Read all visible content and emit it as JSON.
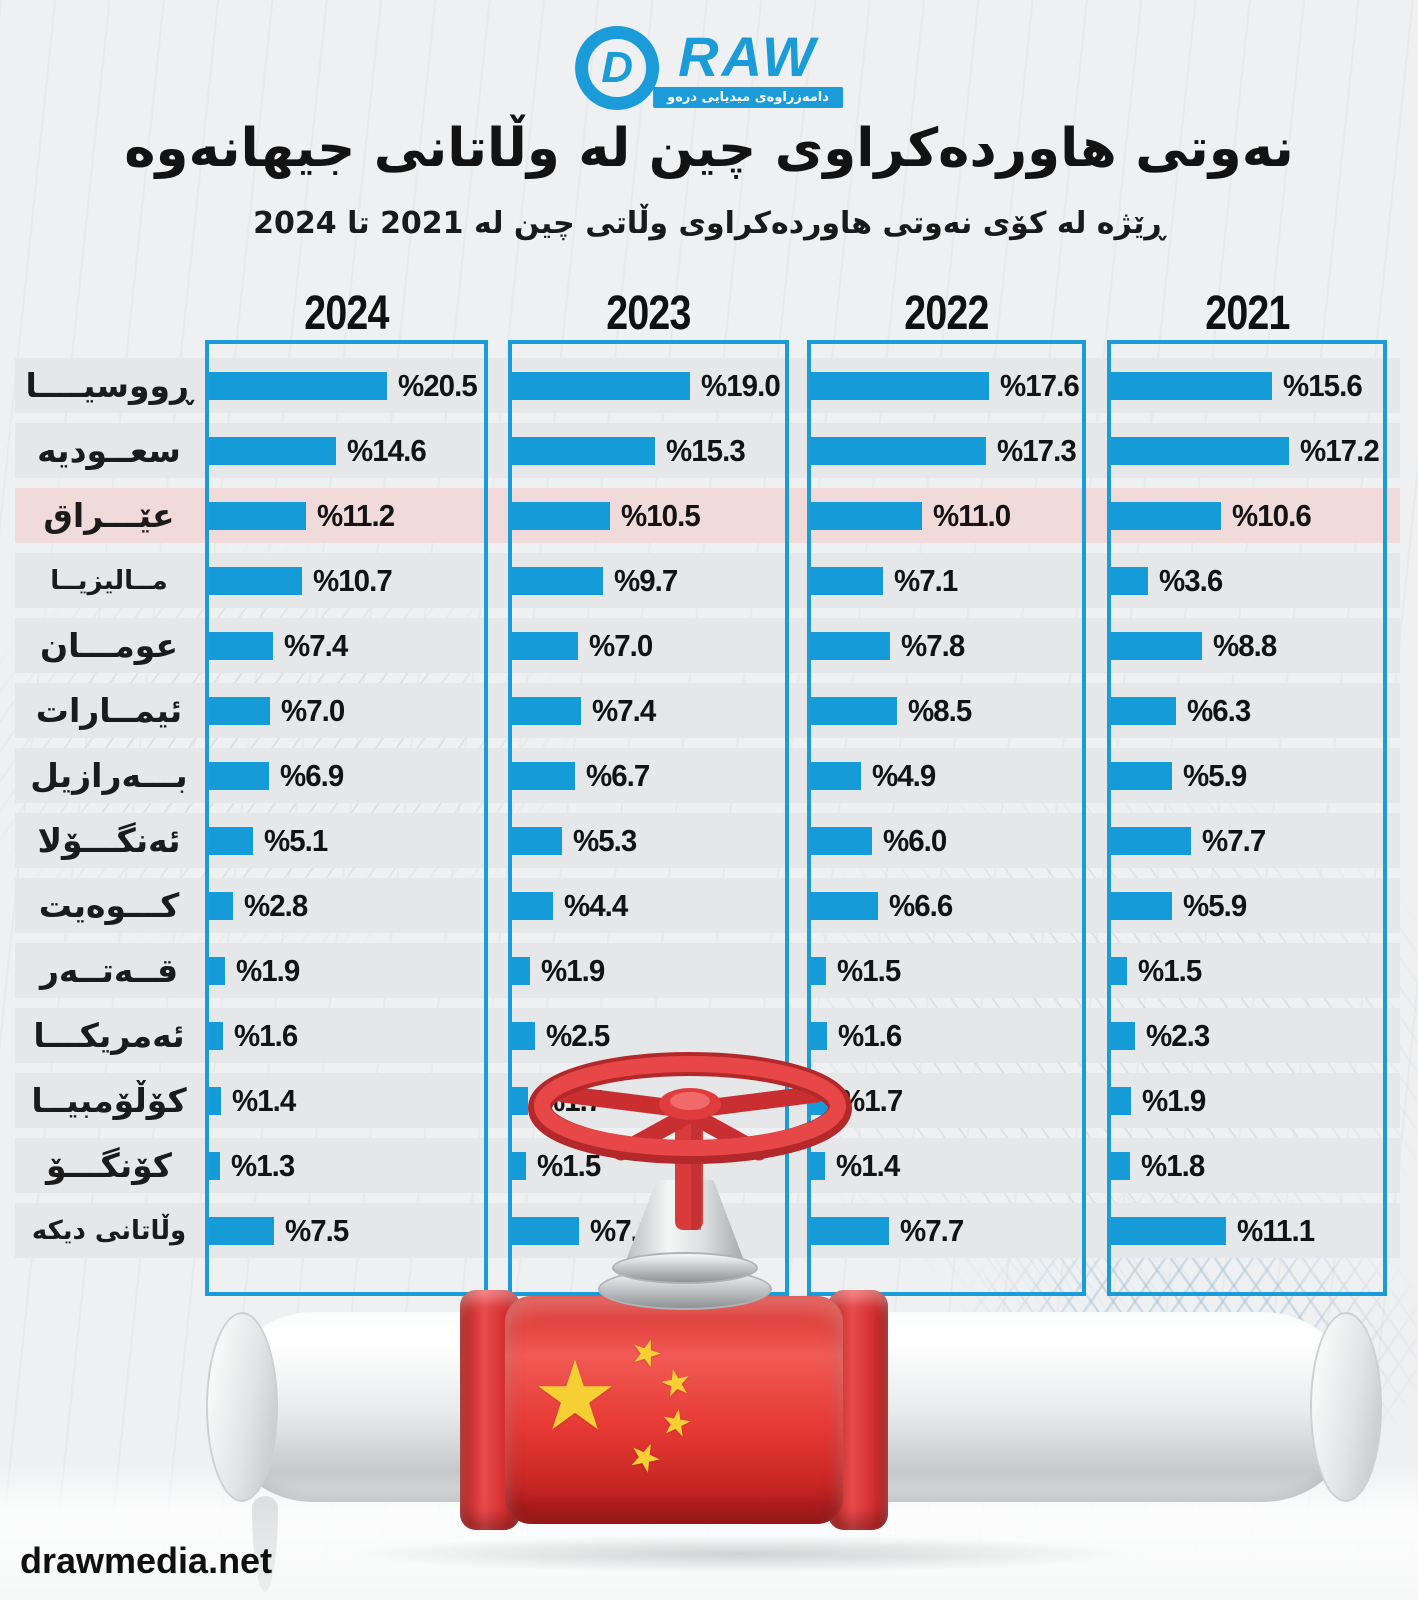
{
  "logo": {
    "monogram": "D",
    "brand": "RAW",
    "tagline": "دامەزراوەی میدیایی درەو"
  },
  "title": "نەوتی هاوردەکراوی چین لە وڵاتانی جیهانەوە",
  "subtitle": "ڕێژە لە کۆی نەوتی هاوردەکراوی وڵاتی چین لە 2021 تا 2024",
  "watermark": "drawmedia.net",
  "colors": {
    "bar_blue": "#149bd8",
    "box_border_blue": "#1b9bd7",
    "row_strip_gray": "#e5e7e9",
    "highlight_pink": "#f1dbda",
    "logo_blue": "#1b9bd7",
    "text_dark": "#131313",
    "flag_red": "#e63934",
    "flag_yellow": "#f6cf35"
  },
  "chart_data": {
    "type": "bar",
    "orientation": "horizontal",
    "title": "نەوتی هاوردەکراوی چین لە وڵاتانی جیهانەوە",
    "subtitle": "ڕێژە لە کۆی نەوتی هاوردەکراوی وڵاتی چین لە 2021 تا 2024",
    "unit": "%",
    "value_prefix": "%",
    "value_decimals": 1,
    "column_order_left_to_right": [
      "2024",
      "2023",
      "2022",
      "2021"
    ],
    "categories": [
      "ڕووسیــــا",
      "سعــودیه",
      "عێـــراق",
      "مــالیزیــا",
      "عومـــان",
      "ئیمــارات",
      "بـــەرازیل",
      "ئەنگـــۆلا",
      "کـــوەیت",
      "قــەتــەر",
      "ئەمریکـــا",
      "کۆڵۆمبیــا",
      "کۆنگـــۆ",
      "وڵاتانی دیکه"
    ],
    "categories_translated": [
      "Russia",
      "Saudi Arabia",
      "Iraq",
      "Malaysia",
      "Oman",
      "Emirates",
      "Brazil",
      "Angola",
      "Kuwait",
      "Qatar",
      "USA",
      "Colombia",
      "Congo",
      "Other countries"
    ],
    "highlighted_category": "عێـــراق",
    "highlighted_index": 2,
    "series": [
      {
        "name": "2024",
        "values": [
          20.5,
          14.6,
          11.2,
          10.7,
          7.4,
          7.0,
          6.9,
          5.1,
          2.8,
          1.9,
          1.6,
          1.4,
          1.3,
          7.5
        ]
      },
      {
        "name": "2023",
        "values": [
          19.0,
          15.3,
          10.5,
          9.7,
          7.0,
          7.4,
          6.7,
          5.3,
          4.4,
          1.9,
          2.5,
          1.7,
          1.5,
          7.1
        ]
      },
      {
        "name": "2022",
        "values": [
          17.6,
          17.3,
          11.0,
          7.1,
          7.8,
          8.5,
          4.9,
          6.0,
          6.6,
          1.5,
          1.6,
          1.7,
          1.4,
          7.7
        ]
      },
      {
        "name": "2021",
        "values": [
          15.6,
          17.2,
          10.6,
          3.6,
          8.8,
          6.3,
          5.9,
          7.7,
          5.9,
          1.5,
          2.3,
          1.9,
          1.8,
          11.1
        ]
      }
    ],
    "bars_normalized_per_column": true,
    "grid": false,
    "legend_position": "column headers above each panel"
  }
}
